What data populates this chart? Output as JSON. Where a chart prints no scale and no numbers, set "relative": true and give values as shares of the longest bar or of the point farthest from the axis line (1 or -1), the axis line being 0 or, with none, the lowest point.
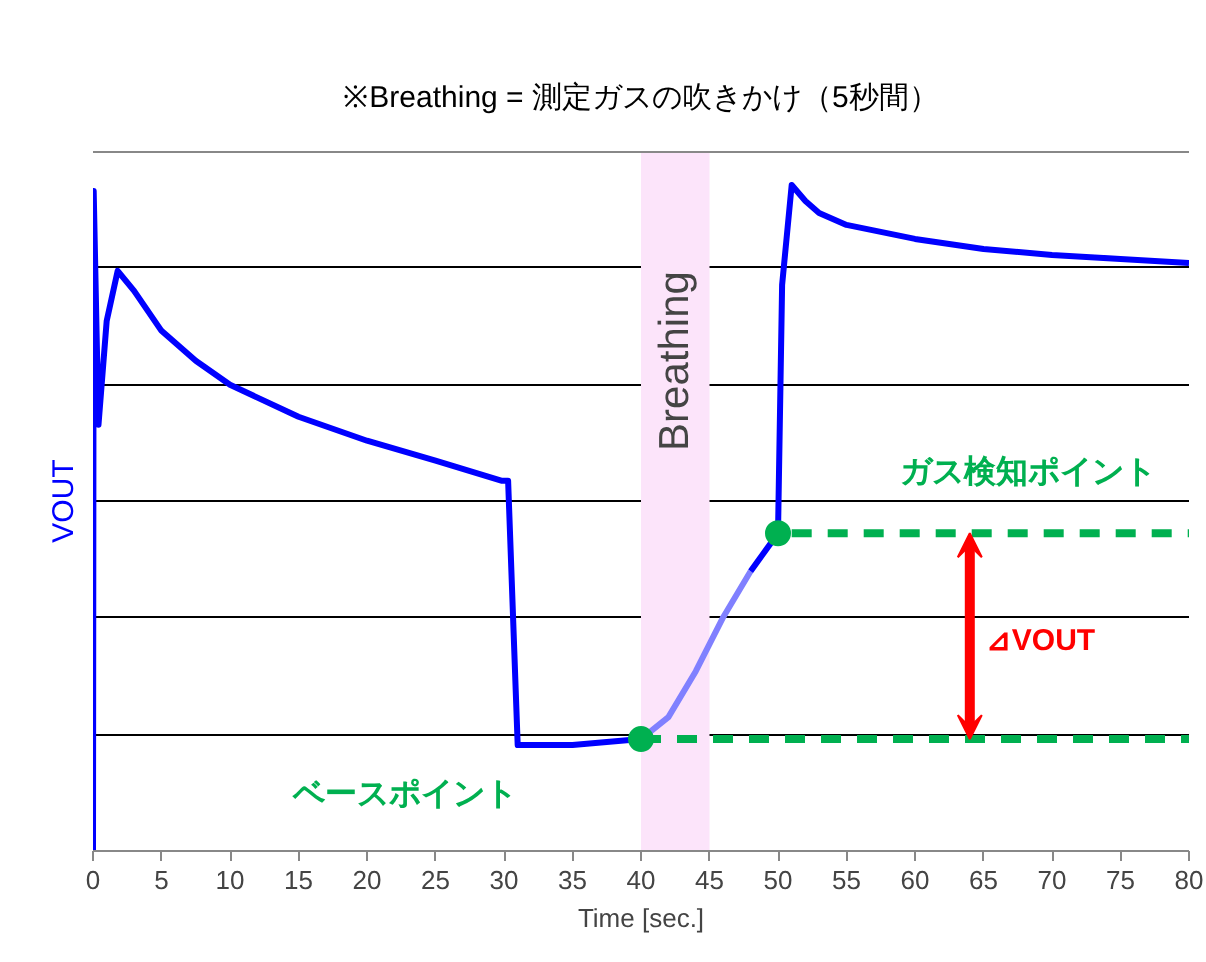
{
  "chart_data": {
    "type": "line",
    "title": "※Breathing = 測定ガスの吹きかけ（5秒間）",
    "xlabel": "Time [sec.]",
    "ylabel": "VOUT",
    "relative": true,
    "grid": "y",
    "xlim": [
      0,
      80
    ],
    "xticks": [
      0,
      5,
      10,
      15,
      20,
      25,
      30,
      35,
      40,
      45,
      50,
      55,
      60,
      65,
      70,
      75,
      80
    ],
    "bands": [
      {
        "axis": "x",
        "from": 40,
        "to": 45,
        "label": "Breathing",
        "color": "#fce4fa"
      }
    ],
    "series": [
      {
        "color": "#0000ff",
        "x": [
          0,
          0.05,
          0.4,
          1,
          1.8,
          3,
          5,
          7.5,
          10,
          15,
          20,
          25,
          29.8,
          30.3,
          31,
          35,
          40
        ],
        "values": [
          0,
          0.991,
          0.64,
          0.796,
          0.871,
          0.841,
          0.781,
          0.736,
          0.7,
          0.652,
          0.616,
          0.586,
          0.556,
          0.556,
          0.159,
          0.159,
          0.168
        ]
      },
      {
        "color": "#8080ff",
        "x": [
          40,
          42,
          44,
          46,
          48
        ],
        "values": [
          0.168,
          0.201,
          0.27,
          0.351,
          0.42
        ]
      },
      {
        "color": "#0000ff",
        "x": [
          48,
          50,
          50.3,
          51,
          52,
          53,
          55,
          60,
          65,
          70,
          75,
          80
        ],
        "values": [
          0.42,
          0.477,
          0.85,
          1.0,
          0.976,
          0.958,
          0.94,
          0.919,
          0.904,
          0.895,
          0.889,
          0.883
        ]
      },
      {
        "color": "#00b050",
        "line_style": "dashed",
        "x": [
          40,
          80
        ],
        "values": [
          0.168,
          0.168
        ]
      },
      {
        "color": "#00b050",
        "line_style": "dashed",
        "x": [
          51,
          80
        ],
        "values": [
          0.477,
          0.477
        ]
      },
      {
        "type": "scatter",
        "marker": "circle",
        "color": "#00b050",
        "x": [
          40,
          50
        ],
        "values": [
          0.168,
          0.477
        ]
      }
    ],
    "annotations": [
      "ベースポイント",
      "ガス検知ポイント",
      "⊿VOUT"
    ]
  }
}
